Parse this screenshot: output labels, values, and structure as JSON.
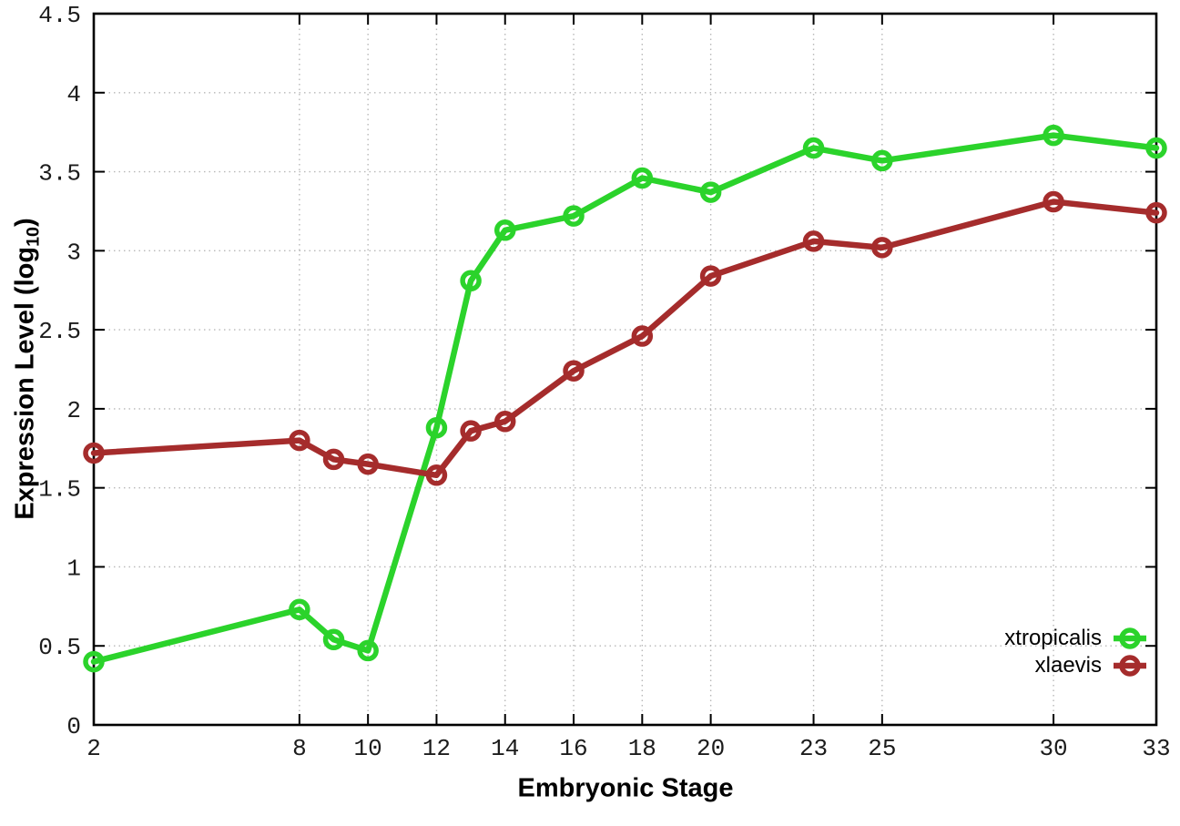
{
  "chart_data": {
    "type": "line",
    "title": "",
    "xlabel": "Embryonic Stage",
    "ylabel": "Expression Level (log10)",
    "ylabel_parts": {
      "pre": "Expression Level (log",
      "sub": "10",
      "post": ")"
    },
    "xlim": [
      2,
      33
    ],
    "ylim": [
      0,
      4.5
    ],
    "x_ticks": [
      2,
      8,
      10,
      12,
      14,
      16,
      18,
      20,
      23,
      25,
      30,
      33
    ],
    "x_tick_labels": [
      "2",
      "8",
      "10",
      "12",
      "14",
      "16",
      "18",
      "20",
      "23",
      "25",
      "30",
      "33"
    ],
    "y_ticks": [
      0,
      0.5,
      1,
      1.5,
      2,
      2.5,
      3,
      3.5,
      4,
      4.5
    ],
    "y_tick_labels": [
      "0",
      "0.5",
      "1",
      "1.5",
      "2",
      "2.5",
      "3",
      "3.5",
      "4",
      "4.5"
    ],
    "grid": true,
    "legend_position": "bottom-right",
    "x": [
      2,
      8,
      9,
      10,
      12,
      13,
      14,
      16,
      18,
      20,
      23,
      25,
      30,
      33
    ],
    "series": [
      {
        "name": "xtropicalis",
        "color": "#2bd32b",
        "values": [
          0.4,
          0.73,
          0.54,
          0.47,
          1.88,
          2.81,
          3.13,
          3.22,
          3.46,
          3.37,
          3.65,
          3.57,
          3.73,
          3.65
        ]
      },
      {
        "name": "xlaevis",
        "color": "#a52c2c",
        "values": [
          1.72,
          1.8,
          1.68,
          1.65,
          1.58,
          1.86,
          1.92,
          2.24,
          2.46,
          2.84,
          3.06,
          3.02,
          3.31,
          3.24
        ]
      }
    ],
    "style": {
      "grid_color": "#b8b8b8",
      "border_color": "#000000",
      "line_width": 6.5,
      "marker_radius": 9,
      "marker_stroke": 5.5
    }
  }
}
